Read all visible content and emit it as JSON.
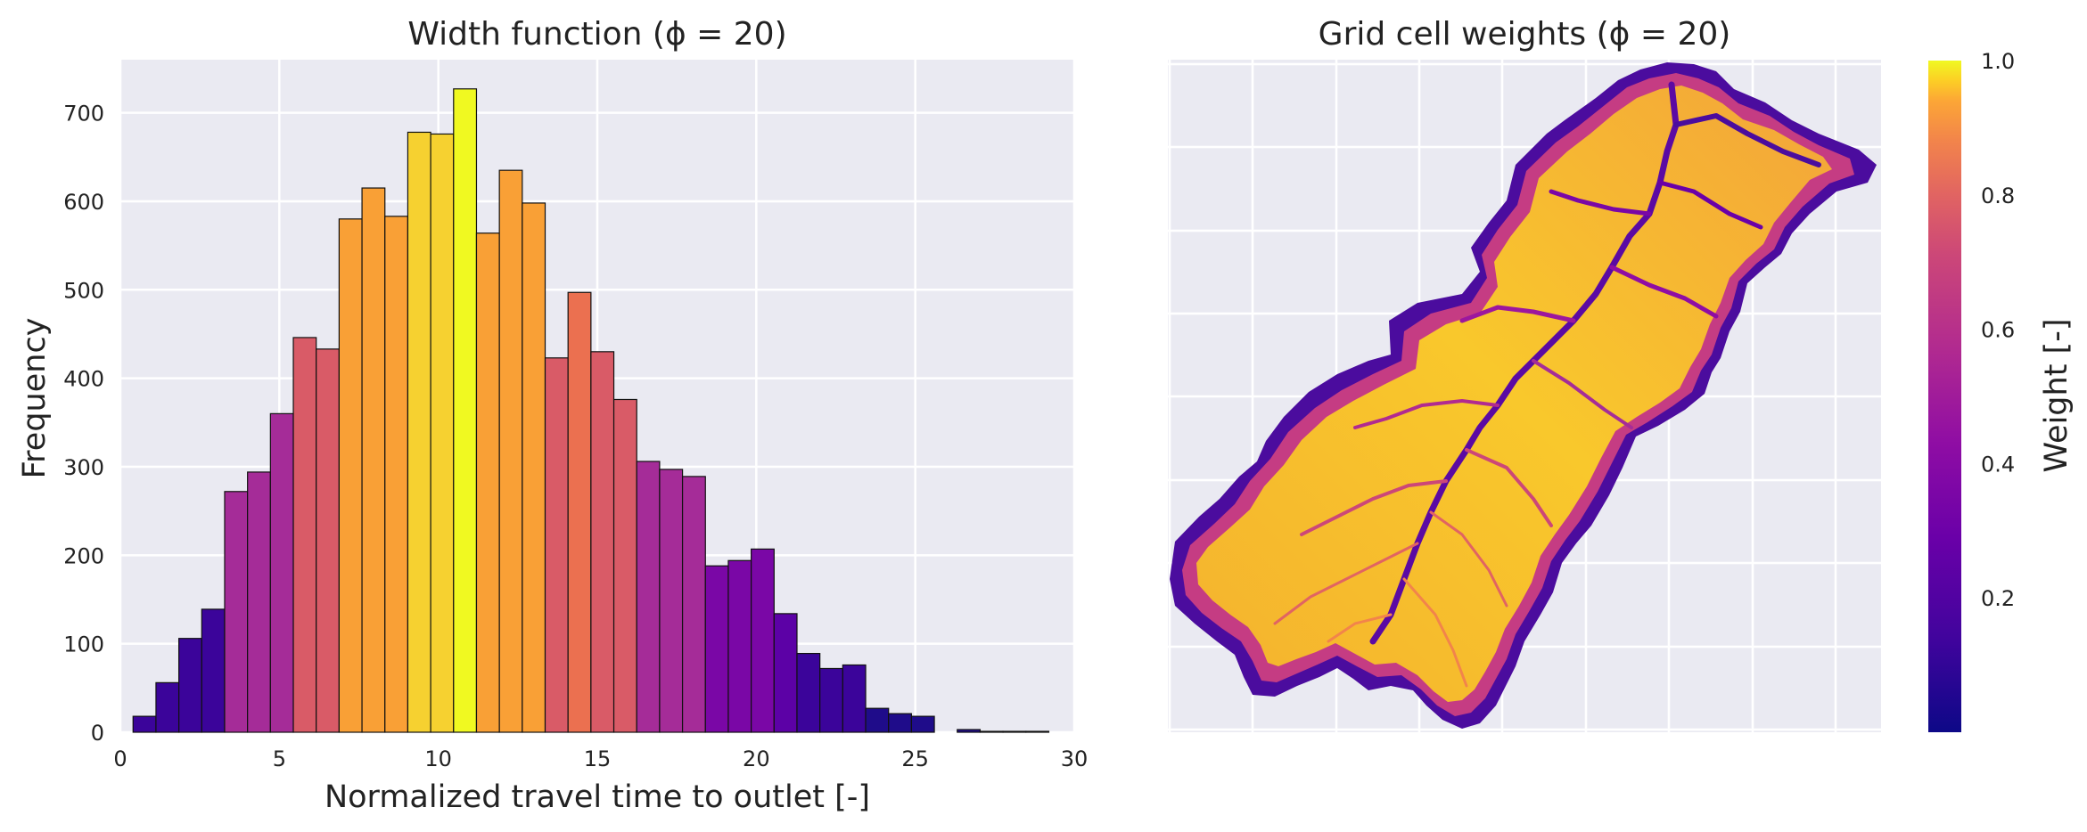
{
  "chart_data": [
    {
      "type": "bar",
      "title": "Width function (ϕ = 20)",
      "xlabel": "Normalized travel time to outlet [-]",
      "ylabel": "Frequency",
      "xlim": [
        0,
        30
      ],
      "ylim": [
        0,
        760
      ],
      "xticks": [
        "0",
        "5",
        "10",
        "15",
        "20",
        "25",
        "30"
      ],
      "yticks": [
        "0",
        "100",
        "200",
        "300",
        "400",
        "500",
        "600",
        "700"
      ],
      "grid": true,
      "bin_width": 0.72,
      "bin_start": 0.4,
      "values": [
        18,
        56,
        106,
        139,
        272,
        294,
        360,
        446,
        433,
        580,
        615,
        583,
        678,
        676,
        727,
        564,
        635,
        598,
        423,
        497,
        430,
        376,
        306,
        297,
        289,
        188,
        194,
        207,
        134,
        89,
        72,
        76,
        27,
        21,
        18,
        0,
        3,
        1,
        1,
        1
      ],
      "colors": [
        "#3b049a",
        "#3b049a",
        "#3b049a",
        "#3b049a",
        "#a52c98",
        "#a52c98",
        "#a52c98",
        "#d95b67",
        "#d95b67",
        "#f9a036",
        "#f9a036",
        "#f9a036",
        "#f6d130",
        "#f6d130",
        "#f0f921",
        "#f9a036",
        "#f9a036",
        "#f9a036",
        "#d95b67",
        "#eb7050",
        "#d95b67",
        "#d95b67",
        "#a52c98",
        "#a52c98",
        "#a52c98",
        "#7a07a6",
        "#7a07a6",
        "#7a07a6",
        "#5c01a6",
        "#3b049a",
        "#3b049a",
        "#3b049a",
        "#1f0c8a",
        "#1f0c8a",
        "#1f0c8a",
        "#1f0c8a",
        "#1f0c8a",
        "#1f0c8a",
        "#1f0c8a",
        "#1f0c8a"
      ],
      "colormap": "plasma"
    },
    {
      "type": "heatmap",
      "title": "Grid cell weights (ϕ = 20)",
      "colorbar_label": "Weight [-]",
      "colorbar_ticks": [
        "0.2",
        "0.4",
        "0.6",
        "0.8",
        "1.0"
      ],
      "colorbar_range": [
        0.0,
        1.0
      ],
      "colormap": "plasma",
      "grid": true
    }
  ]
}
